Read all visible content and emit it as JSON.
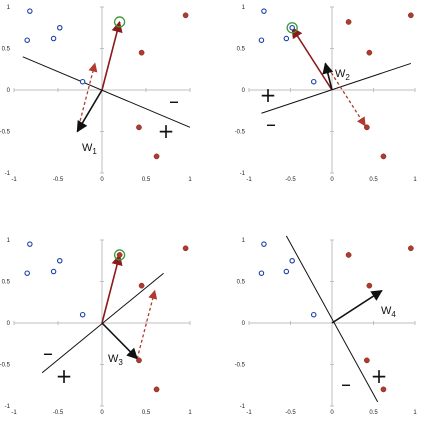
{
  "colors": {
    "negative_point": "#1a3fa8",
    "positive_point": "#b03a2e",
    "weight_arrow": "#111111",
    "selected_vector": "#8b1a1a",
    "update_arrow": "#b03a2e",
    "highlight_ring": "#3a9a3a",
    "boundary": "#111111"
  },
  "chart_data": [
    {
      "type": "scatter",
      "xlim": [
        -1,
        1
      ],
      "ylim": [
        -1,
        1
      ],
      "x_ticks": [
        "-1",
        "-0.5",
        "0",
        "0.5",
        "1"
      ],
      "y_ticks": [
        "1",
        "0.5",
        "0",
        "-0.5",
        "-1"
      ],
      "negative_points": [
        [
          -0.82,
          0.95
        ],
        [
          -0.85,
          0.6
        ],
        [
          -0.55,
          0.62
        ],
        [
          -0.48,
          0.75
        ],
        [
          -0.22,
          0.1
        ]
      ],
      "positive_points": [
        [
          0.45,
          0.45
        ],
        [
          0.95,
          0.9
        ],
        [
          0.42,
          -0.45
        ],
        [
          0.62,
          -0.8
        ]
      ],
      "highlighted_point": [
        0.2,
        0.82
      ],
      "weight_vector": [
        -0.28,
        -0.5
      ],
      "selected_vector": [
        0.2,
        0.82
      ],
      "update_arrow": {
        "from": [
          -0.28,
          -0.5
        ],
        "to": [
          -0.08,
          0.32
        ]
      },
      "boundary": {
        "from": [
          -0.9,
          0.4
        ],
        "to": [
          1.0,
          -0.45
        ]
      },
      "weight_label": {
        "main": "W",
        "sub": "1"
      },
      "signs": [
        "–",
        "+"
      ]
    },
    {
      "type": "scatter",
      "xlim": [
        -1,
        1
      ],
      "ylim": [
        -1,
        1
      ],
      "x_ticks": [
        "-1",
        "-0.5",
        "0",
        "0.5",
        "1"
      ],
      "y_ticks": [
        "1",
        "0.5",
        "0",
        "-0.5",
        "-1"
      ],
      "negative_points": [
        [
          -0.82,
          0.95
        ],
        [
          -0.85,
          0.6
        ],
        [
          -0.55,
          0.62
        ],
        [
          -0.48,
          0.75
        ],
        [
          -0.22,
          0.1
        ]
      ],
      "positive_points": [
        [
          0.2,
          0.82
        ],
        [
          0.45,
          0.45
        ],
        [
          0.95,
          0.9
        ],
        [
          0.42,
          -0.45
        ],
        [
          0.62,
          -0.8
        ]
      ],
      "highlighted_point": [
        -0.48,
        0.75
      ],
      "weight_vector": [
        -0.08,
        0.32
      ],
      "selected_vector": [
        -0.48,
        0.75
      ],
      "update_arrow": {
        "from": [
          -0.08,
          0.32
        ],
        "to": [
          0.4,
          -0.43
        ]
      },
      "boundary": {
        "from": [
          -0.85,
          -0.28
        ],
        "to": [
          0.95,
          0.32
        ]
      },
      "weight_label": {
        "main": "W",
        "sub": "2"
      },
      "signs": [
        "+",
        "–"
      ]
    },
    {
      "type": "scatter",
      "xlim": [
        -1,
        1
      ],
      "ylim": [
        -1,
        1
      ],
      "x_ticks": [
        "-1",
        "-0.5",
        "0",
        "0.5",
        "1"
      ],
      "y_ticks": [
        "1",
        "0.5",
        "0",
        "-0.5",
        "-1"
      ],
      "negative_points": [
        [
          -0.82,
          0.95
        ],
        [
          -0.85,
          0.6
        ],
        [
          -0.55,
          0.62
        ],
        [
          -0.48,
          0.75
        ],
        [
          -0.22,
          0.1
        ]
      ],
      "positive_points": [
        [
          0.2,
          0.82
        ],
        [
          0.45,
          0.45
        ],
        [
          0.95,
          0.9
        ],
        [
          0.42,
          -0.45
        ],
        [
          0.62,
          -0.8
        ]
      ],
      "highlighted_point": [
        0.2,
        0.82
      ],
      "weight_vector": [
        0.4,
        -0.43
      ],
      "selected_vector": [
        0.2,
        0.82
      ],
      "update_arrow": {
        "from": [
          0.4,
          -0.43
        ],
        "to": [
          0.6,
          0.39
        ]
      },
      "boundary": {
        "from": [
          -0.68,
          -0.6
        ],
        "to": [
          0.7,
          0.6
        ]
      },
      "weight_label": {
        "main": "W",
        "sub": "3"
      },
      "signs": [
        "–",
        "+"
      ]
    },
    {
      "type": "scatter",
      "xlim": [
        -1,
        1
      ],
      "ylim": [
        -1,
        1
      ],
      "x_ticks": [
        "-1",
        "-0.5",
        "0",
        "0.5",
        "1"
      ],
      "y_ticks": [
        "1",
        "0.5",
        "0",
        "-0.5",
        "-1"
      ],
      "negative_points": [
        [
          -0.82,
          0.95
        ],
        [
          -0.85,
          0.6
        ],
        [
          -0.55,
          0.62
        ],
        [
          -0.48,
          0.75
        ],
        [
          -0.22,
          0.1
        ]
      ],
      "positive_points": [
        [
          0.2,
          0.82
        ],
        [
          0.45,
          0.45
        ],
        [
          0.95,
          0.9
        ],
        [
          0.42,
          -0.45
        ],
        [
          0.62,
          -0.8
        ]
      ],
      "highlighted_point": null,
      "weight_vector": [
        0.6,
        0.39
      ],
      "selected_vector": null,
      "update_arrow": null,
      "boundary": {
        "from": [
          -0.55,
          1.05
        ],
        "to": [
          0.55,
          -0.95
        ]
      },
      "weight_label": {
        "main": "W",
        "sub": "4"
      },
      "signs": [
        "–",
        "+"
      ]
    }
  ]
}
